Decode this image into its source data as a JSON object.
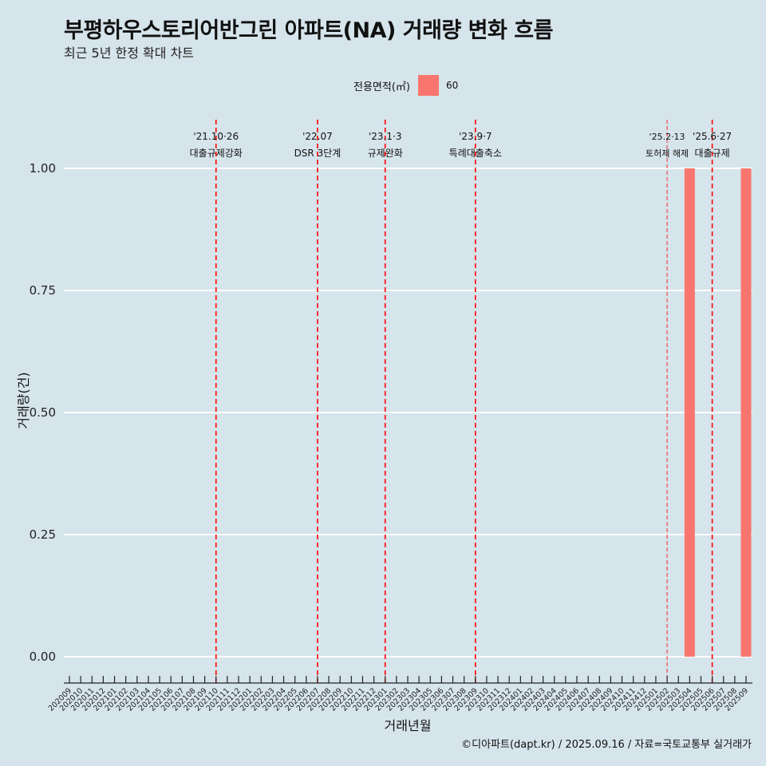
{
  "header": {
    "title": "부평하우스토리어반그린 아파트(NA) 거래량 변화 흐름",
    "subtitle": "최근 5년 한정 확대 차트"
  },
  "legend": {
    "title": "전용면적(㎡)",
    "entries": [
      {
        "label": "60",
        "color": "#f8766d"
      }
    ]
  },
  "caption": "©디아파트(dapt.kr) / 2025.09.16 / 자료=국토교통부 실거래가",
  "colors": {
    "background": "#d6e4eb",
    "bar": "#f8766d",
    "vline": "#ff0000",
    "grid": "#ffffff"
  },
  "chart_data": {
    "type": "bar",
    "title": "부평하우스토리어반그린 아파트(NA) 거래량 변화 흐름",
    "subtitle": "최근 5년 한정 확대 차트",
    "xlabel": "거래년월",
    "ylabel": "거래량(건)",
    "ylim": [
      0,
      1
    ],
    "yticks": [
      "0.00",
      "0.25",
      "0.50",
      "0.75",
      "1.00"
    ],
    "categories": [
      "202009",
      "202010",
      "202011",
      "202012",
      "202101",
      "202102",
      "202103",
      "202104",
      "202105",
      "202106",
      "202107",
      "202108",
      "202109",
      "202110",
      "202111",
      "202112",
      "202201",
      "202202",
      "202203",
      "202204",
      "202205",
      "202206",
      "202207",
      "202208",
      "202209",
      "202210",
      "202211",
      "202212",
      "202301",
      "202302",
      "202303",
      "202304",
      "202305",
      "202306",
      "202307",
      "202308",
      "202309",
      "202310",
      "202311",
      "202312",
      "202401",
      "202402",
      "202403",
      "202404",
      "202405",
      "202406",
      "202407",
      "202408",
      "202409",
      "202410",
      "202411",
      "202412",
      "202501",
      "202502",
      "202503",
      "202504",
      "202505",
      "202506",
      "202507",
      "202508",
      "202509"
    ],
    "series": [
      {
        "name": "60",
        "values": [
          {
            "x": "202504",
            "y": 1
          },
          {
            "x": "202509",
            "y": 1
          }
        ]
      }
    ],
    "annotations": [
      {
        "x": "202110",
        "date": "'21.10·26",
        "label": "대출규제강화",
        "style": "dashed"
      },
      {
        "x": "202207",
        "date": "'22.07",
        "label": "DSR 3단계",
        "style": "dashed"
      },
      {
        "x": "202301",
        "date": "'23.1·3",
        "label": "규제완화",
        "style": "dashed"
      },
      {
        "x": "202309",
        "date": "'23.9·7",
        "label": "특례대출축소",
        "style": "dashed"
      },
      {
        "x": "202502",
        "date": "'25.2·13",
        "label": "토허제 해제",
        "style": "thin"
      },
      {
        "x": "202506",
        "date": "'25.6·27",
        "label": "대출규제",
        "style": "dashed"
      }
    ]
  }
}
